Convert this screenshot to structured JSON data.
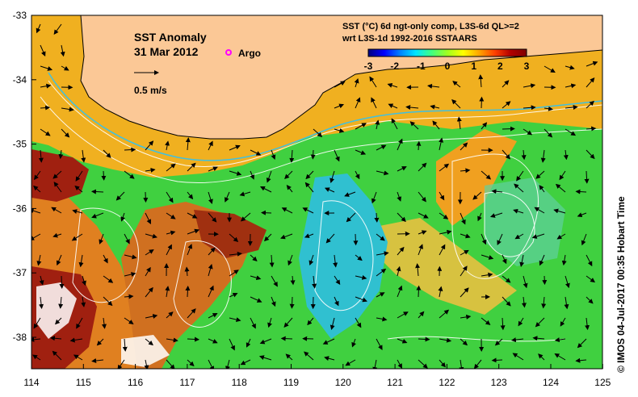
{
  "map": {
    "title": "SST Anomaly",
    "date": "31 Mar 2012",
    "argo_label": "Argo",
    "vector_scale_label": "0.5 m/s",
    "colorbar_title_line1": "SST (°C) 6d ngt-only comp, L3S-6d QL>=2",
    "colorbar_title_line2": "wrt L3S-1d 1992-2016 SSTAARS",
    "colorbar_ticks": [
      "-3",
      "-2",
      "-1",
      "0",
      "1",
      "2",
      "3"
    ],
    "colorbar_colors": [
      "#00007f",
      "#0000ff",
      "#0080ff",
      "#00e5ff",
      "#40ff80",
      "#a0ff20",
      "#ffff00",
      "#ffa500",
      "#ff4000",
      "#b00000",
      "#7f0000"
    ],
    "lat_labels": [
      "-33",
      "-34",
      "-35",
      "-36",
      "-37",
      "-38"
    ],
    "lon_labels": [
      "114",
      "115",
      "116",
      "117",
      "118",
      "119",
      "120",
      "121",
      "122",
      "123",
      "124",
      "125"
    ],
    "credit": "© IMOS 04-Jul-2017 00:35 Hobart Time",
    "colors": {
      "land": "#fbc896",
      "warm_anomaly": "#f0b020",
      "neutral": "#40d040",
      "cool_anomaly": "#30c0d0",
      "hot_anomaly": "#a02010",
      "argo": "#ff00ff"
    }
  }
}
